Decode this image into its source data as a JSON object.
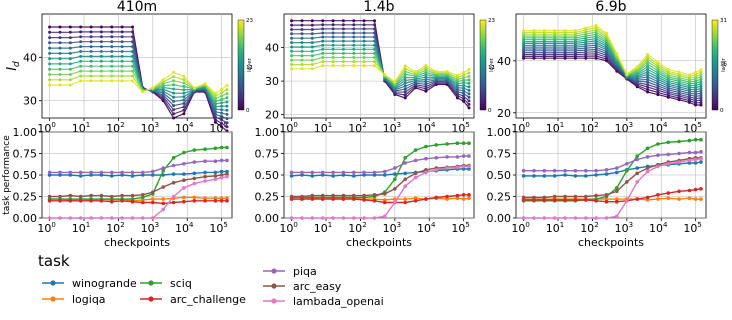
{
  "figure": {
    "panel_titles": [
      "410m",
      "1.4b",
      "6.9b"
    ],
    "top_ylabel": "I_d",
    "bottom_ylabel": "task performance",
    "xlabel": "checkpoints",
    "colorbar_label": "layer",
    "legend_title": "task"
  },
  "colors": {
    "winogrande": "#1f77b4",
    "logiqa": "#ff7f0e",
    "sciq": "#2ca02c",
    "arc_challenge": "#d62728",
    "piqa": "#9467bd",
    "arc_easy": "#8c564b",
    "lambada_openai": "#e377c2"
  },
  "chart_data": [
    {
      "type": "line",
      "title": "410m",
      "ylabel": "I_d",
      "xscale": "log",
      "x_ticks": [
        "10^0",
        "10^1",
        "10^2",
        "10^3",
        "10^4",
        "10^5"
      ],
      "y_ticks": [
        30,
        40
      ],
      "ylim": [
        26,
        50
      ],
      "x": [
        1,
        2,
        4,
        8,
        16,
        32,
        64,
        128,
        256,
        512,
        1000,
        2000,
        4000,
        8000,
        16000,
        33000,
        66000,
        100000,
        143000
      ],
      "colorbar": {
        "range": [
          0,
          23
        ],
        "ticks": [
          0,
          11,
          23
        ],
        "label": "layer",
        "colormap": "viridis"
      },
      "layer_curves": {
        "early_layer_values": [
          47,
          47,
          47,
          47,
          47,
          47,
          47,
          47,
          47,
          33,
          32,
          30,
          26,
          27,
          32,
          32,
          25,
          24,
          23
        ],
        "late_layer_values": [
          33,
          33,
          33,
          34,
          34,
          34,
          34,
          34,
          34,
          32,
          33,
          35,
          37,
          36,
          33,
          34,
          32,
          33,
          34
        ]
      }
    },
    {
      "type": "line",
      "title": "1.4b",
      "ylabel": "I_d",
      "xscale": "log",
      "x_ticks": [
        "10^0",
        "10^1",
        "10^2",
        "10^3",
        "10^4",
        "10^5"
      ],
      "y_ticks": [
        20,
        30,
        40
      ],
      "ylim": [
        19,
        50
      ],
      "x": [
        1,
        2,
        4,
        8,
        16,
        32,
        64,
        128,
        256,
        512,
        1000,
        2000,
        4000,
        8000,
        16000,
        33000,
        66000,
        100000,
        143000
      ],
      "colorbar": {
        "range": [
          0,
          23
        ],
        "ticks": [
          0,
          11,
          23
        ],
        "label": "layer",
        "colormap": "viridis"
      },
      "layer_curves": {
        "early_layer_values": [
          48,
          48,
          48,
          48,
          48,
          48,
          48,
          48,
          48,
          30,
          26,
          25,
          28,
          27,
          29,
          29,
          25,
          24,
          22
        ],
        "late_layer_values": [
          33,
          33,
          33,
          34,
          34,
          34,
          34,
          34,
          34,
          32,
          30,
          35,
          33,
          35,
          33,
          33,
          32,
          33,
          34
        ]
      }
    },
    {
      "type": "line",
      "title": "6.9b",
      "ylabel": "I_d",
      "xscale": "log",
      "x_ticks": [
        "10^0",
        "10^1",
        "10^2",
        "10^3",
        "10^4",
        "10^5"
      ],
      "y_ticks": [
        20,
        40
      ],
      "ylim": [
        18,
        58
      ],
      "x": [
        1,
        2,
        4,
        8,
        16,
        32,
        64,
        128,
        256,
        512,
        1000,
        2000,
        4000,
        8000,
        16000,
        33000,
        66000,
        100000,
        143000
      ],
      "colorbar": {
        "range": [
          0,
          31
        ],
        "ticks": [
          0,
          16,
          31
        ],
        "label": "layer",
        "colormap": "viridis"
      },
      "layer_curves": {
        "early_layer_values": [
          41,
          41,
          41,
          41,
          41,
          41,
          41,
          41,
          40,
          36,
          33,
          30,
          28,
          27,
          26,
          25,
          24,
          23,
          23
        ],
        "late_layer_values": [
          52,
          52,
          52,
          52,
          52,
          52,
          53,
          54,
          51,
          43,
          35,
          38,
          43,
          40,
          37,
          36,
          35,
          36,
          37
        ]
      }
    },
    {
      "type": "line",
      "ylabel": "task performance",
      "xlabel": "checkpoints",
      "xscale": "log",
      "x_ticks": [
        "10^0",
        "10^1",
        "10^2",
        "10^3",
        "10^4",
        "10^5"
      ],
      "y_ticks": [
        "0.00",
        "0.25",
        "0.50",
        "0.75",
        "1.00"
      ],
      "ylim": [
        0,
        1
      ],
      "x": [
        1,
        2,
        4,
        8,
        16,
        32,
        64,
        128,
        256,
        512,
        1000,
        2000,
        4000,
        8000,
        16000,
        33000,
        66000,
        100000,
        143000
      ],
      "series": [
        {
          "name": "winogrande",
          "values": [
            0.5,
            0.5,
            0.5,
            0.49,
            0.5,
            0.5,
            0.49,
            0.5,
            0.49,
            0.5,
            0.5,
            0.5,
            0.51,
            0.51,
            0.52,
            0.53,
            0.53,
            0.54,
            0.54
          ]
        },
        {
          "name": "logiqa",
          "values": [
            0.22,
            0.22,
            0.21,
            0.22,
            0.21,
            0.22,
            0.21,
            0.22,
            0.2,
            0.21,
            0.22,
            0.22,
            0.23,
            0.24,
            0.24,
            0.23,
            0.23,
            0.23,
            0.23
          ]
        },
        {
          "name": "sciq",
          "values": [
            0.22,
            0.22,
            0.22,
            0.22,
            0.22,
            0.22,
            0.22,
            0.22,
            0.22,
            0.24,
            0.28,
            0.55,
            0.7,
            0.76,
            0.79,
            0.8,
            0.81,
            0.82,
            0.82
          ]
        },
        {
          "name": "arc_challenge",
          "values": [
            0.2,
            0.2,
            0.2,
            0.2,
            0.2,
            0.2,
            0.19,
            0.2,
            0.19,
            0.18,
            0.18,
            0.17,
            0.18,
            0.19,
            0.2,
            0.2,
            0.2,
            0.2,
            0.2
          ]
        },
        {
          "name": "piqa",
          "values": [
            0.53,
            0.53,
            0.53,
            0.53,
            0.53,
            0.53,
            0.53,
            0.53,
            0.53,
            0.53,
            0.54,
            0.58,
            0.61,
            0.63,
            0.65,
            0.66,
            0.66,
            0.67,
            0.67
          ]
        },
        {
          "name": "arc_easy",
          "values": [
            0.25,
            0.25,
            0.26,
            0.25,
            0.26,
            0.26,
            0.25,
            0.26,
            0.26,
            0.27,
            0.3,
            0.36,
            0.41,
            0.44,
            0.46,
            0.48,
            0.49,
            0.5,
            0.51
          ]
        },
        {
          "name": "lambada_openai",
          "values": [
            0.0,
            0.0,
            0.0,
            0.0,
            0.0,
            0.0,
            0.0,
            0.0,
            0.0,
            0.0,
            0.0,
            0.1,
            0.25,
            0.35,
            0.4,
            0.43,
            0.45,
            0.47,
            0.48
          ]
        }
      ]
    },
    {
      "type": "line",
      "xlabel": "checkpoints",
      "xscale": "log",
      "x_ticks": [
        "10^0",
        "10^1",
        "10^2",
        "10^3",
        "10^4",
        "10^5"
      ],
      "y_ticks": [
        "0.00",
        "0.25",
        "0.50",
        "0.75",
        "1.00"
      ],
      "ylim": [
        0,
        1
      ],
      "x": [
        1,
        2,
        4,
        8,
        16,
        32,
        64,
        128,
        256,
        512,
        1000,
        2000,
        4000,
        8000,
        16000,
        33000,
        66000,
        100000,
        143000
      ],
      "series": [
        {
          "name": "winogrande",
          "values": [
            0.49,
            0.5,
            0.49,
            0.5,
            0.49,
            0.5,
            0.49,
            0.5,
            0.5,
            0.5,
            0.51,
            0.52,
            0.53,
            0.54,
            0.55,
            0.56,
            0.57,
            0.57,
            0.57
          ]
        },
        {
          "name": "logiqa",
          "values": [
            0.22,
            0.22,
            0.23,
            0.22,
            0.23,
            0.22,
            0.23,
            0.22,
            0.22,
            0.21,
            0.22,
            0.22,
            0.23,
            0.22,
            0.23,
            0.22,
            0.23,
            0.22,
            0.23
          ]
        },
        {
          "name": "sciq",
          "values": [
            0.24,
            0.24,
            0.24,
            0.24,
            0.24,
            0.24,
            0.24,
            0.24,
            0.25,
            0.3,
            0.45,
            0.7,
            0.79,
            0.83,
            0.85,
            0.86,
            0.87,
            0.87,
            0.87
          ]
        },
        {
          "name": "arc_challenge",
          "values": [
            0.22,
            0.22,
            0.22,
            0.22,
            0.22,
            0.22,
            0.22,
            0.21,
            0.2,
            0.18,
            0.18,
            0.18,
            0.2,
            0.22,
            0.24,
            0.25,
            0.26,
            0.27,
            0.27
          ]
        },
        {
          "name": "piqa",
          "values": [
            0.53,
            0.53,
            0.53,
            0.53,
            0.53,
            0.53,
            0.53,
            0.53,
            0.53,
            0.54,
            0.58,
            0.64,
            0.67,
            0.69,
            0.7,
            0.71,
            0.71,
            0.72,
            0.72
          ]
        },
        {
          "name": "arc_easy",
          "values": [
            0.25,
            0.25,
            0.26,
            0.26,
            0.26,
            0.26,
            0.26,
            0.26,
            0.27,
            0.28,
            0.34,
            0.45,
            0.52,
            0.56,
            0.58,
            0.59,
            0.6,
            0.61,
            0.61
          ]
        },
        {
          "name": "lambada_openai",
          "values": [
            0.0,
            0.0,
            0.0,
            0.0,
            0.0,
            0.0,
            0.0,
            0.0,
            0.0,
            0.02,
            0.18,
            0.37,
            0.47,
            0.53,
            0.56,
            0.58,
            0.59,
            0.6,
            0.6
          ]
        }
      ]
    },
    {
      "type": "line",
      "xlabel": "checkpoints",
      "xscale": "log",
      "x_ticks": [
        "10^0",
        "10^1",
        "10^2",
        "10^3",
        "10^4",
        "10^5"
      ],
      "y_ticks": [
        "0.00",
        "0.25",
        "0.50",
        "0.75",
        "1.00"
      ],
      "ylim": [
        0,
        1
      ],
      "x": [
        1,
        2,
        4,
        8,
        16,
        32,
        64,
        128,
        256,
        512,
        1000,
        2000,
        4000,
        8000,
        16000,
        33000,
        66000,
        100000,
        143000
      ],
      "series": [
        {
          "name": "winogrande",
          "values": [
            0.49,
            0.49,
            0.49,
            0.49,
            0.5,
            0.49,
            0.49,
            0.5,
            0.51,
            0.53,
            0.56,
            0.58,
            0.6,
            0.61,
            0.62,
            0.63,
            0.64,
            0.64,
            0.65
          ]
        },
        {
          "name": "logiqa",
          "values": [
            0.22,
            0.22,
            0.22,
            0.22,
            0.22,
            0.22,
            0.22,
            0.22,
            0.22,
            0.22,
            0.22,
            0.22,
            0.21,
            0.22,
            0.23,
            0.22,
            0.23,
            0.22,
            0.22
          ]
        },
        {
          "name": "sciq",
          "values": [
            0.2,
            0.2,
            0.2,
            0.2,
            0.2,
            0.2,
            0.21,
            0.22,
            0.25,
            0.35,
            0.55,
            0.72,
            0.81,
            0.86,
            0.88,
            0.89,
            0.9,
            0.91,
            0.91
          ]
        },
        {
          "name": "arc_challenge",
          "values": [
            0.21,
            0.21,
            0.21,
            0.21,
            0.21,
            0.21,
            0.21,
            0.2,
            0.19,
            0.19,
            0.2,
            0.22,
            0.24,
            0.27,
            0.29,
            0.31,
            0.32,
            0.33,
            0.34
          ]
        },
        {
          "name": "piqa",
          "values": [
            0.55,
            0.55,
            0.55,
            0.55,
            0.55,
            0.55,
            0.55,
            0.55,
            0.56,
            0.58,
            0.63,
            0.68,
            0.71,
            0.73,
            0.74,
            0.75,
            0.76,
            0.76,
            0.77
          ]
        },
        {
          "name": "arc_easy",
          "values": [
            0.24,
            0.24,
            0.24,
            0.25,
            0.25,
            0.25,
            0.25,
            0.26,
            0.27,
            0.31,
            0.42,
            0.52,
            0.58,
            0.62,
            0.65,
            0.67,
            0.69,
            0.7,
            0.7
          ]
        },
        {
          "name": "lambada_openai",
          "values": [
            0.0,
            0.0,
            0.0,
            0.0,
            0.0,
            0.0,
            0.0,
            0.0,
            0.0,
            0.02,
            0.2,
            0.42,
            0.54,
            0.6,
            0.63,
            0.65,
            0.67,
            0.68,
            0.69
          ]
        }
      ]
    }
  ],
  "legend": {
    "title": "task",
    "entries": [
      "winogrande",
      "logiqa",
      "sciq",
      "arc_challenge",
      "piqa",
      "arc_easy",
      "lambada_openai"
    ]
  }
}
